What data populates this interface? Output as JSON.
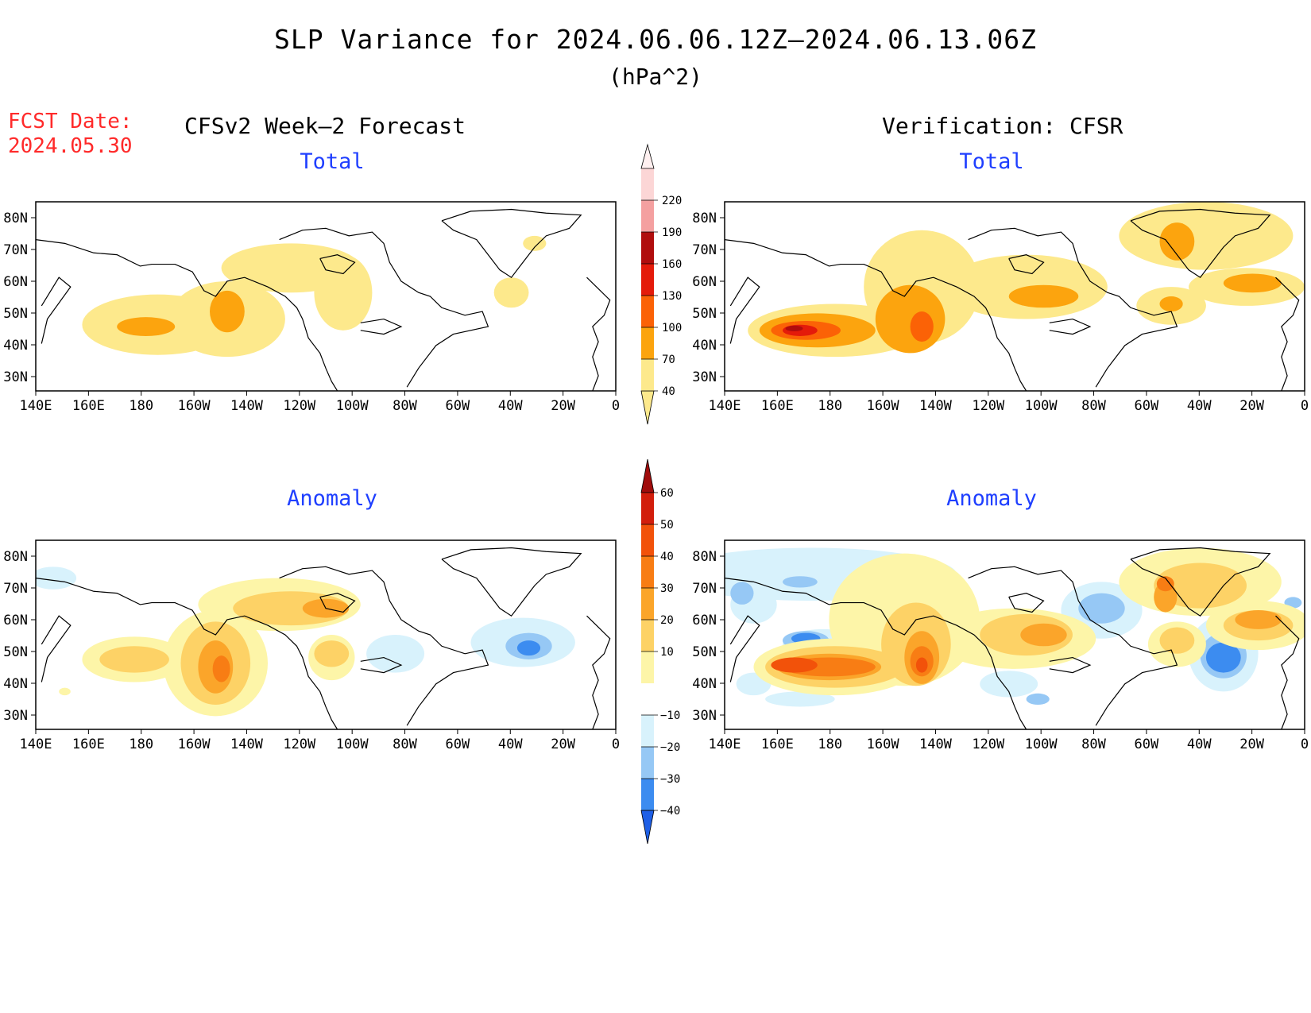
{
  "title": "SLP Variance for 2024.06.06.12Z—2024.06.13.06Z",
  "units": "(hPa^2)",
  "forecast_date_label": "FCST Date:",
  "forecast_date": "2024.05.30",
  "left_column_title": "CFSv2 Week—2 Forecast",
  "right_column_title": "Verification: CFSR",
  "panels": [
    {
      "id": "fcst-total",
      "subtitle": "Total"
    },
    {
      "id": "verif-total",
      "subtitle": "Total"
    },
    {
      "id": "fcst-anomaly",
      "subtitle": "Anomaly"
    },
    {
      "id": "verif-anomaly",
      "subtitle": "Anomaly"
    }
  ],
  "lat_labels": [
    "80N",
    "70N",
    "60N",
    "50N",
    "40N",
    "30N"
  ],
  "lon_labels": [
    "140E",
    "160E",
    "180",
    "160W",
    "140W",
    "120W",
    "100W",
    "80W",
    "60W",
    "40W",
    "20W",
    "0"
  ],
  "total_colorbar": {
    "levels": [
      "40",
      "70",
      "100",
      "130",
      "160",
      "190",
      "220"
    ],
    "colors": [
      "#fde98c",
      "#fca40e",
      "#fb6206",
      "#e41b0a",
      "#b00d0d",
      "#f4a0a0",
      "#fcd6d6"
    ]
  },
  "anomaly_colorbar": {
    "levels": [
      "−40",
      "−30",
      "−20",
      "−10",
      "10",
      "20",
      "30",
      "40",
      "50",
      "60"
    ],
    "colors_neg": [
      "#1e5fe6",
      "#3c8cf0",
      "#96c8f5",
      "#d8f2fc"
    ],
    "colors_pos": [
      "#fdf5a8",
      "#fdd266",
      "#fba52a",
      "#f87d14",
      "#f2520a",
      "#d21e0c",
      "#a00c0c"
    ]
  }
}
